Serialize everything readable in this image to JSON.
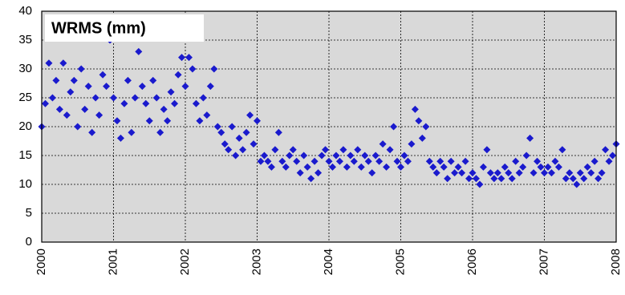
{
  "chart_data": {
    "type": "scatter",
    "title": "WRMS (mm)",
    "color": "#1a1acd",
    "grid": true,
    "xlim": [
      2000,
      2008
    ],
    "xticks": [
      2000,
      2001,
      2002,
      2003,
      2004,
      2005,
      2006,
      2007,
      2008
    ],
    "ylim": [
      0,
      40
    ],
    "yticks": [
      0,
      5,
      10,
      15,
      20,
      25,
      30,
      35,
      40
    ],
    "x": [
      2000.0,
      2000.05,
      2000.1,
      2000.15,
      2000.2,
      2000.25,
      2000.3,
      2000.35,
      2000.4,
      2000.45,
      2000.5,
      2000.55,
      2000.6,
      2000.65,
      2000.7,
      2000.75,
      2000.8,
      2000.85,
      2000.9,
      2000.95,
      2001.0,
      2001.05,
      2001.1,
      2001.15,
      2001.2,
      2001.25,
      2001.3,
      2001.35,
      2001.4,
      2001.45,
      2001.5,
      2001.55,
      2001.6,
      2001.65,
      2001.7,
      2001.75,
      2001.8,
      2001.85,
      2001.9,
      2001.95,
      2002.0,
      2002.05,
      2002.1,
      2002.15,
      2002.2,
      2002.25,
      2002.3,
      2002.35,
      2002.4,
      2002.45,
      2002.5,
      2002.55,
      2002.6,
      2002.65,
      2002.7,
      2002.75,
      2002.8,
      2002.85,
      2002.9,
      2002.95,
      2003.0,
      2003.05,
      2003.1,
      2003.15,
      2003.2,
      2003.25,
      2003.3,
      2003.35,
      2003.4,
      2003.45,
      2003.5,
      2003.55,
      2003.6,
      2003.65,
      2003.7,
      2003.75,
      2003.8,
      2003.85,
      2003.9,
      2003.95,
      2004.0,
      2004.05,
      2004.1,
      2004.15,
      2004.2,
      2004.25,
      2004.3,
      2004.35,
      2004.4,
      2004.45,
      2004.5,
      2004.55,
      2004.6,
      2004.65,
      2004.7,
      2004.75,
      2004.8,
      2004.85,
      2004.9,
      2004.95,
      2005.0,
      2005.05,
      2005.1,
      2005.15,
      2005.2,
      2005.25,
      2005.3,
      2005.35,
      2005.4,
      2005.45,
      2005.5,
      2005.55,
      2005.6,
      2005.65,
      2005.7,
      2005.75,
      2005.8,
      2005.85,
      2005.9,
      2005.95,
      2006.0,
      2006.05,
      2006.1,
      2006.15,
      2006.2,
      2006.25,
      2006.3,
      2006.35,
      2006.4,
      2006.45,
      2006.5,
      2006.55,
      2006.6,
      2006.65,
      2006.7,
      2006.75,
      2006.8,
      2006.85,
      2006.9,
      2006.95,
      2007.0,
      2007.05,
      2007.1,
      2007.15,
      2007.2,
      2007.25,
      2007.3,
      2007.35,
      2007.4,
      2007.45,
      2007.5,
      2007.55,
      2007.6,
      2007.65,
      2007.7,
      2007.75,
      2007.8,
      2007.85,
      2007.9,
      2007.95,
      2008.0
    ],
    "values": [
      20,
      24,
      31,
      25,
      28,
      23,
      31,
      22,
      26,
      28,
      20,
      30,
      23,
      27,
      19,
      25,
      22,
      29,
      27,
      35,
      25,
      21,
      18,
      24,
      28,
      19,
      25,
      33,
      27,
      24,
      21,
      28,
      25,
      19,
      23,
      21,
      26,
      24,
      29,
      32,
      27,
      32,
      30,
      24,
      21,
      25,
      22,
      27,
      30,
      20,
      19,
      17,
      16,
      20,
      15,
      18,
      16,
      19,
      22,
      17,
      21,
      14,
      15,
      14,
      13,
      16,
      19,
      14,
      13,
      15,
      16,
      14,
      12,
      15,
      13,
      11,
      14,
      12,
      15,
      16,
      14,
      13,
      15,
      14,
      16,
      13,
      15,
      14,
      16,
      13,
      15,
      14,
      12,
      15,
      14,
      17,
      13,
      16,
      20,
      14,
      13,
      15,
      14,
      17,
      23,
      21,
      18,
      20,
      14,
      13,
      12,
      14,
      13,
      11,
      14,
      12,
      13,
      12,
      14,
      11,
      12,
      11,
      10,
      13,
      16,
      12,
      11,
      12,
      11,
      13,
      12,
      11,
      14,
      12,
      13,
      15,
      18,
      12,
      14,
      13,
      12,
      13,
      12,
      14,
      13,
      16,
      11,
      12,
      11,
      10,
      12,
      11,
      13,
      12,
      14,
      11,
      12,
      16,
      14,
      15,
      17
    ]
  }
}
